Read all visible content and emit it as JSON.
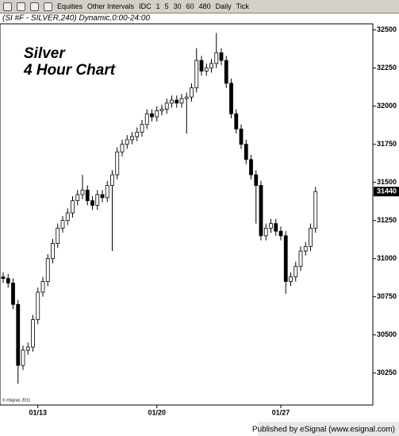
{
  "toolbar": {
    "items": [
      "Equities",
      "Other Intervals",
      "IDC",
      "1",
      "5",
      "30",
      "60",
      "480",
      "Daily",
      "Tick"
    ]
  },
  "chart_data": {
    "type": "candlestick",
    "header": "(SI #F - SILVER,240) Dynamic,0:00-24:00",
    "annotations": [
      "Silver",
      "4 Hour Chart"
    ],
    "copyright": "© eSignal, 2011",
    "footer": "Published by eSignal (www.esignal.com)",
    "current_price": 31440,
    "categories": [
      null,
      null,
      null,
      null,
      null,
      null,
      null,
      "01/13",
      null,
      null,
      null,
      null,
      null,
      null,
      null,
      null,
      null,
      null,
      null,
      null,
      null,
      null,
      null,
      null,
      null,
      null,
      null,
      null,
      null,
      null,
      null,
      "01/20",
      null,
      null,
      null,
      null,
      null,
      null,
      null,
      null,
      null,
      null,
      null,
      null,
      null,
      null,
      null,
      null,
      null,
      null,
      null,
      null,
      null,
      null,
      null,
      null,
      "01/27",
      null,
      null,
      null,
      null,
      null,
      null,
      null
    ],
    "open": [
      30880,
      30870,
      30840,
      30700,
      30300,
      30400,
      30420,
      30600,
      30780,
      30850,
      31000,
      31100,
      31200,
      31250,
      31300,
      31380,
      31420,
      31450,
      31380,
      31350,
      31420,
      31400,
      31480,
      31550,
      31700,
      31750,
      31780,
      31800,
      31830,
      31880,
      31950,
      31930,
      31970,
      31980,
      32020,
      32040,
      32020,
      32050,
      32060,
      32120,
      32300,
      32230,
      32250,
      32280,
      32350,
      32300,
      32150,
      31950,
      31850,
      31750,
      31650,
      31550,
      31480,
      31150,
      31200,
      31230,
      31180,
      31150,
      30850,
      30880,
      30950,
      31050,
      31080,
      31200
    ],
    "high": [
      30910,
      30900,
      30870,
      30730,
      30430,
      30450,
      30630,
      30810,
      30880,
      31030,
      31130,
      31230,
      31280,
      31330,
      31410,
      31450,
      31550,
      31480,
      31410,
      31450,
      31450,
      31510,
      31580,
      31730,
      31780,
      31810,
      31830,
      31860,
      31910,
      31980,
      31980,
      32000,
      32010,
      32050,
      32070,
      32070,
      32080,
      32090,
      32150,
      32380,
      32330,
      32280,
      32310,
      32480,
      32380,
      32330,
      32180,
      31980,
      31880,
      31780,
      31680,
      31580,
      31510,
      31230,
      31260,
      31260,
      31210,
      31180,
      30910,
      30980,
      31080,
      31110,
      31230,
      31470
    ],
    "low": [
      30840,
      30810,
      30670,
      30180,
      30270,
      30370,
      30390,
      30570,
      30750,
      30820,
      30970,
      31070,
      31170,
      31220,
      31270,
      31350,
      31390,
      31350,
      31320,
      31320,
      31370,
      31370,
      31050,
      31520,
      31670,
      31720,
      31750,
      31770,
      31800,
      31850,
      31900,
      31900,
      31940,
      31950,
      31990,
      31990,
      31990,
      31820,
      32030,
      32090,
      32200,
      32200,
      32220,
      32250,
      32270,
      32120,
      31920,
      31820,
      31720,
      31620,
      31520,
      31230,
      31120,
      31120,
      31170,
      31150,
      31120,
      30770,
      30820,
      30850,
      30920,
      31020,
      31050,
      31170
    ],
    "close": [
      30870,
      30840,
      30700,
      30300,
      30400,
      30420,
      30600,
      30780,
      30850,
      31000,
      31100,
      31200,
      31250,
      31300,
      31380,
      31420,
      31450,
      31380,
      31350,
      31420,
      31400,
      31480,
      31550,
      31700,
      31750,
      31780,
      31800,
      31830,
      31880,
      31950,
      31930,
      31970,
      31980,
      32020,
      32040,
      32020,
      32050,
      32060,
      32120,
      32300,
      32230,
      32250,
      32280,
      32350,
      32300,
      32150,
      31950,
      31850,
      31750,
      31650,
      31550,
      31480,
      31150,
      31200,
      31230,
      31180,
      31150,
      30850,
      30880,
      30950,
      31050,
      31080,
      31200,
      31440
    ],
    "ylim": [
      30040,
      32540
    ],
    "yticks": [
      30250,
      30500,
      30750,
      31000,
      31250,
      31500,
      31750,
      32000,
      32250,
      32500
    ],
    "grid": false,
    "up_color": "#ffffff",
    "down_color": "#000000",
    "edge_color": "#000000"
  }
}
